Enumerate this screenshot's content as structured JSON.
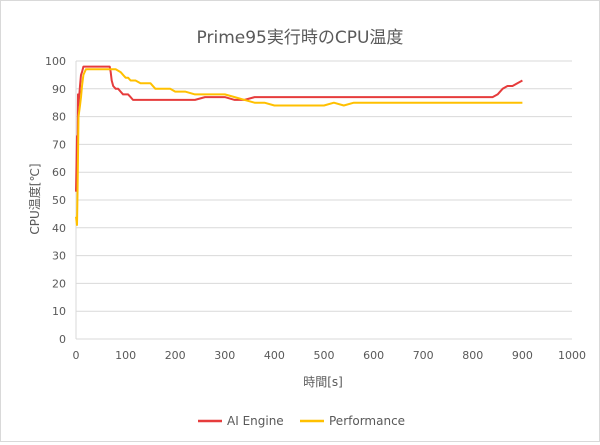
{
  "chart_data": {
    "type": "line",
    "title": "Prime95実行時のCPU温度",
    "xlabel": "時間[s]",
    "ylabel": "CPU温度[℃]",
    "xlim": [
      0,
      1000
    ],
    "ylim": [
      0,
      100
    ],
    "xticks": [
      0,
      100,
      200,
      300,
      400,
      500,
      600,
      700,
      800,
      900,
      1000
    ],
    "yticks": [
      0,
      10,
      20,
      30,
      40,
      50,
      60,
      70,
      80,
      90,
      100
    ],
    "grid": true,
    "legend_position": "bottom",
    "series": [
      {
        "name": "AI Engine",
        "color": "#e63c3c",
        "x": [
          0,
          2,
          3,
          4,
          5,
          8,
          10,
          12,
          15,
          20,
          30,
          40,
          50,
          60,
          68,
          70,
          72,
          75,
          80,
          85,
          90,
          95,
          100,
          105,
          110,
          115,
          120,
          140,
          160,
          180,
          200,
          220,
          240,
          260,
          280,
          300,
          320,
          340,
          360,
          380,
          400,
          410,
          420,
          430,
          440,
          450,
          460,
          470,
          480,
          490,
          500,
          510,
          520,
          530,
          540,
          550,
          560,
          570,
          580,
          590,
          600,
          620,
          640,
          660,
          680,
          700,
          720,
          740,
          760,
          780,
          800,
          810,
          820,
          825,
          830,
          840,
          850,
          860,
          870,
          880,
          890,
          900
        ],
        "y": [
          53,
          73,
          65,
          88,
          84,
          91,
          95,
          96,
          98,
          98,
          98,
          98,
          98,
          98,
          98,
          96,
          93,
          91,
          90,
          90,
          89,
          88,
          88,
          88,
          87,
          86,
          86,
          86,
          86,
          86,
          86,
          86,
          86,
          87,
          87,
          87,
          86,
          86,
          87,
          87,
          87,
          87,
          87,
          87,
          87,
          87,
          87,
          87,
          87,
          87,
          87,
          87,
          87,
          87,
          87,
          87,
          87,
          87,
          87,
          87,
          87,
          87,
          87,
          87,
          87,
          87,
          87,
          87,
          87,
          87,
          87,
          87,
          87,
          87,
          87,
          87,
          88,
          90,
          91,
          91,
          92,
          93
        ]
      },
      {
        "name": "Performance",
        "color": "#ffc000",
        "x": [
          0,
          2,
          3,
          5,
          8,
          10,
          12,
          15,
          20,
          30,
          40,
          50,
          60,
          70,
          80,
          90,
          95,
          100,
          105,
          110,
          120,
          130,
          140,
          150,
          160,
          170,
          180,
          190,
          200,
          220,
          240,
          260,
          280,
          300,
          320,
          340,
          360,
          380,
          400,
          420,
          440,
          460,
          480,
          500,
          520,
          540,
          560,
          580,
          600,
          620,
          640,
          660,
          680,
          700,
          720,
          740,
          760,
          780,
          800,
          820,
          840,
          860,
          880,
          900
        ],
        "y": [
          44,
          41,
          52,
          80,
          84,
          87,
          91,
          95,
          97,
          97,
          97,
          97,
          97,
          97,
          97,
          96,
          95,
          94,
          94,
          93,
          93,
          92,
          92,
          92,
          90,
          90,
          90,
          90,
          89,
          89,
          88,
          88,
          88,
          88,
          87,
          86,
          85,
          85,
          84,
          84,
          84,
          84,
          84,
          84,
          85,
          84,
          85,
          85,
          85,
          85,
          85,
          85,
          85,
          85,
          85,
          85,
          85,
          85,
          85,
          85,
          85,
          85,
          85,
          85
        ]
      }
    ]
  }
}
